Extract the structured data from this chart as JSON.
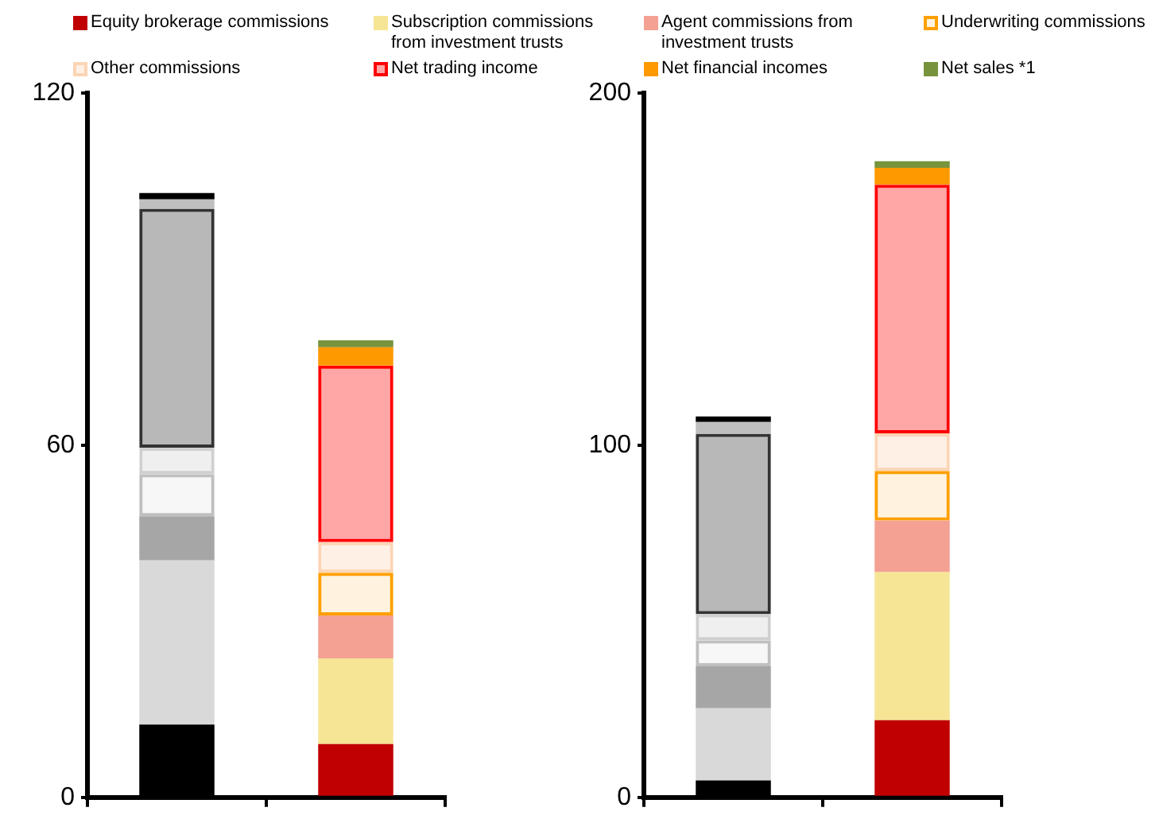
{
  "chart_data": [
    {
      "type": "bar",
      "stacked": true,
      "categories": [
        null,
        null
      ],
      "ylim": [
        0,
        120
      ],
      "yticks": [
        0,
        60,
        120
      ],
      "grid": false,
      "legend": "top",
      "series": [
        {
          "name": "Equity brokerage commissions",
          "colors": [
            "#000000",
            "#c00000"
          ],
          "values": [
            12.4,
            9.1
          ]
        },
        {
          "name": "Subscription commissions from investment trusts",
          "colors": [
            "#d9d9d9",
            "#f5e595"
          ],
          "values": [
            28.0,
            14.6
          ]
        },
        {
          "name": "Agent commissions from investment trusts",
          "colors": [
            "#a6a6a6",
            "#f4a193"
          ],
          "values": [
            7.5,
            7.3
          ]
        },
        {
          "name": "Underwriting commissions",
          "colors": [
            "#bfbfbf",
            "#ffa000"
          ],
          "values": [
            7.2,
            7.3
          ]
        },
        {
          "name": "Other commissions",
          "colors": [
            "#d0d0d0",
            "#fcd5b5"
          ],
          "values": [
            4.5,
            5.2
          ]
        },
        {
          "name": "Net trading income",
          "colors": [
            "#333333",
            "#ff0000"
          ],
          "values": [
            40.7,
            30.1
          ]
        },
        {
          "name": "Net financial incomes",
          "colors": [
            "#bfbfbf",
            "#ff9900"
          ],
          "values": [
            1.6,
            3.1
          ]
        },
        {
          "name": "Net sales *1",
          "colors": [
            "#000000",
            "#77933c"
          ],
          "values": [
            1.1,
            1.2
          ]
        }
      ]
    },
    {
      "type": "bar",
      "stacked": true,
      "categories": [
        null,
        null
      ],
      "ylim": [
        0,
        200
      ],
      "yticks": [
        0,
        100,
        200
      ],
      "grid": false,
      "series": [
        {
          "colors": [
            "#000000",
            "#c00000"
          ],
          "values": [
            4.8,
            21.9
          ]
        },
        {
          "colors": [
            "#d9d9d9",
            "#f5e595"
          ],
          "values": [
            20.5,
            42.1
          ]
        },
        {
          "colors": [
            "#a6a6a6",
            "#f4a193"
          ],
          "values": [
            11.9,
            14.6
          ]
        },
        {
          "colors": [
            "#bfbfbf",
            "#ffa000"
          ],
          "values": [
            7.4,
            14.1
          ]
        },
        {
          "colors": [
            "#d0d0d0",
            "#fcd5b5"
          ],
          "values": [
            7.4,
            10.7
          ]
        },
        {
          "colors": [
            "#333333",
            "#ff0000"
          ],
          "values": [
            51.3,
            70.6
          ]
        },
        {
          "colors": [
            "#bfbfbf",
            "#ff9900"
          ],
          "values": [
            3.3,
            4.8
          ]
        },
        {
          "colors": [
            "#000000",
            "#77933c"
          ],
          "values": [
            1.6,
            1.9
          ]
        }
      ]
    }
  ]
}
